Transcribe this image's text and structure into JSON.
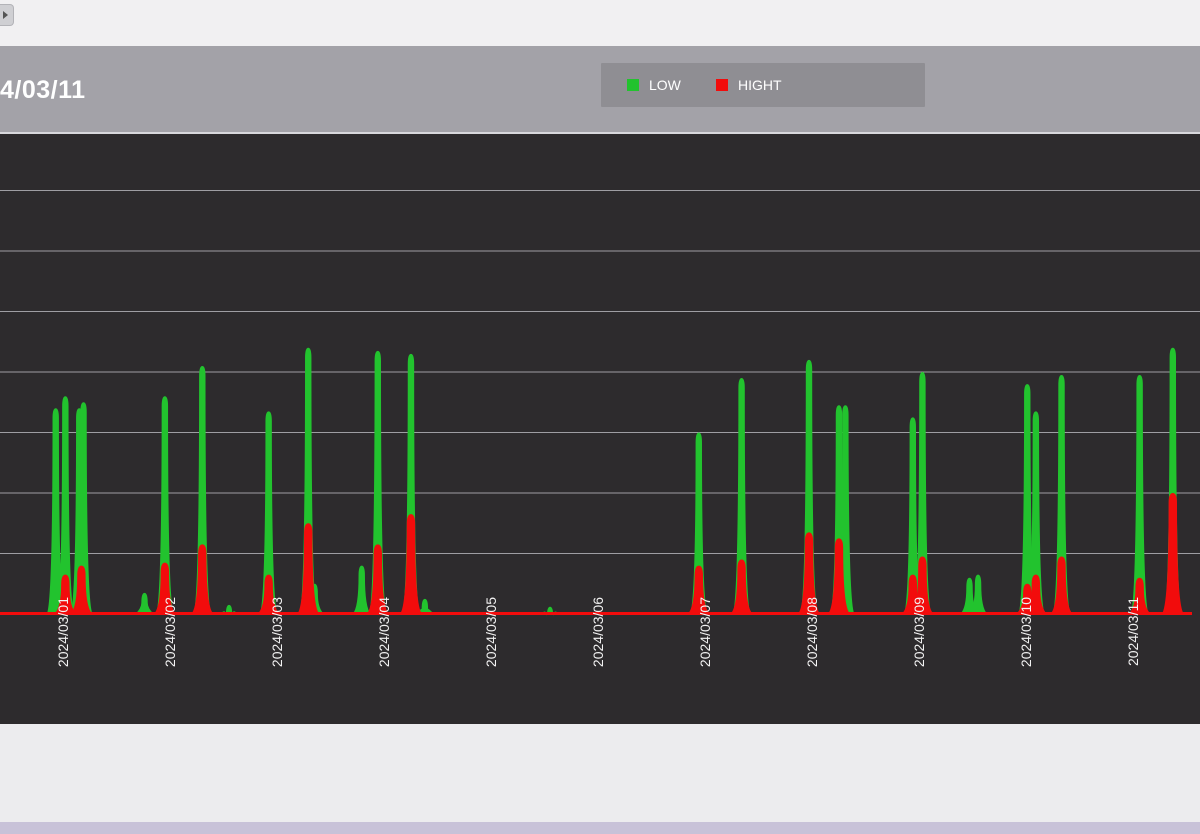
{
  "header": {
    "title": "4/03/11"
  },
  "legend": [
    {
      "label": "LOW",
      "color": "#22c32e"
    },
    {
      "label": "HIGHT",
      "color": "#f20c0c"
    }
  ],
  "chart_data": {
    "type": "area",
    "title": "4/03/11",
    "x_tick_labels": [
      "2024/03/01",
      "2024/03/02",
      "2024/03/03",
      "2024/03/04",
      "2024/03/05",
      "2024/03/06",
      "2024/03/07",
      "2024/03/08",
      "2024/03/09",
      "2024/03/10",
      "2024/03/11"
    ],
    "x_unit": "day",
    "xlim": [
      0.4,
      11.6
    ],
    "ylim": [
      0,
      7
    ],
    "grid": true,
    "grid_lines": 7,
    "legend_position": "top-right",
    "series": [
      {
        "name": "LOW",
        "color": "#22c32e",
        "peaks": [
          {
            "x": 0.96,
            "y": 3.4
          },
          {
            "x": 1.05,
            "y": 3.6
          },
          {
            "x": 1.18,
            "y": 3.4
          },
          {
            "x": 1.22,
            "y": 3.5
          },
          {
            "x": 1.79,
            "y": 0.35
          },
          {
            "x": 1.98,
            "y": 3.6
          },
          {
            "x": 2.33,
            "y": 4.1
          },
          {
            "x": 2.58,
            "y": 0.15
          },
          {
            "x": 2.95,
            "y": 3.35
          },
          {
            "x": 3.32,
            "y": 4.4
          },
          {
            "x": 3.38,
            "y": 0.5
          },
          {
            "x": 3.82,
            "y": 0.8
          },
          {
            "x": 3.97,
            "y": 4.35
          },
          {
            "x": 4.28,
            "y": 4.3
          },
          {
            "x": 4.41,
            "y": 0.25
          },
          {
            "x": 5.58,
            "y": 0.12
          },
          {
            "x": 6.97,
            "y": 3.0
          },
          {
            "x": 7.37,
            "y": 3.9
          },
          {
            "x": 8.0,
            "y": 4.2
          },
          {
            "x": 8.28,
            "y": 3.45
          },
          {
            "x": 8.34,
            "y": 3.45
          },
          {
            "x": 8.97,
            "y": 3.25
          },
          {
            "x": 9.06,
            "y": 4.0
          },
          {
            "x": 9.5,
            "y": 0.6
          },
          {
            "x": 9.58,
            "y": 0.65
          },
          {
            "x": 10.04,
            "y": 3.8
          },
          {
            "x": 10.12,
            "y": 3.35
          },
          {
            "x": 10.36,
            "y": 3.95
          },
          {
            "x": 11.09,
            "y": 3.95
          },
          {
            "x": 11.4,
            "y": 4.4
          }
        ]
      },
      {
        "name": "HIGHT",
        "color": "#f20c0c",
        "peaks": [
          {
            "x": 1.05,
            "y": 0.65
          },
          {
            "x": 1.2,
            "y": 0.8
          },
          {
            "x": 1.98,
            "y": 0.85
          },
          {
            "x": 2.33,
            "y": 1.15
          },
          {
            "x": 2.95,
            "y": 0.65
          },
          {
            "x": 3.32,
            "y": 1.5
          },
          {
            "x": 3.97,
            "y": 1.15
          },
          {
            "x": 4.28,
            "y": 1.65
          },
          {
            "x": 6.97,
            "y": 0.8
          },
          {
            "x": 7.37,
            "y": 0.9
          },
          {
            "x": 8.0,
            "y": 1.35
          },
          {
            "x": 8.28,
            "y": 1.25
          },
          {
            "x": 8.97,
            "y": 0.65
          },
          {
            "x": 9.06,
            "y": 0.95
          },
          {
            "x": 10.04,
            "y": 0.5
          },
          {
            "x": 10.12,
            "y": 0.65
          },
          {
            "x": 10.36,
            "y": 0.95
          },
          {
            "x": 11.09,
            "y": 0.6
          },
          {
            "x": 11.4,
            "y": 2.0
          }
        ]
      }
    ]
  }
}
